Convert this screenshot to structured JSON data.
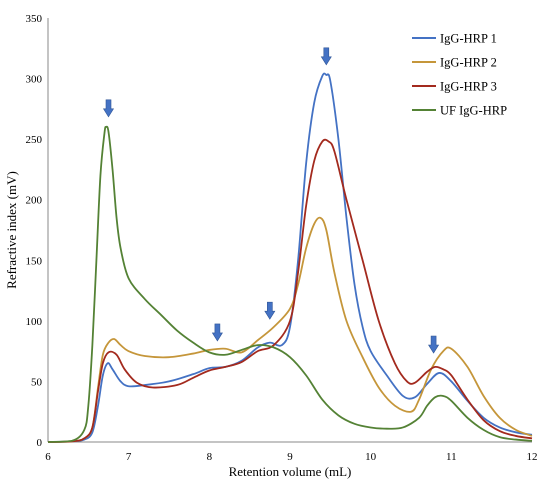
{
  "chart_data": {
    "type": "line",
    "title": "",
    "xlabel": "Retention volume (mL)",
    "ylabel": "Refractive index (mV)",
    "xlim": [
      6,
      12
    ],
    "ylim": [
      0,
      350
    ],
    "x_ticks": [
      "6",
      "7",
      "8",
      "9",
      "10",
      "11",
      "12"
    ],
    "y_ticks": [
      "0",
      "50",
      "100",
      "150",
      "200",
      "250",
      "300",
      "350"
    ],
    "grid": false,
    "legend_position": "top-right",
    "series": [
      {
        "name": "IgG-HRP 1",
        "color": "#4472C4",
        "x": [
          6.0,
          6.3,
          6.45,
          6.55,
          6.62,
          6.68,
          6.74,
          6.8,
          6.9,
          7.0,
          7.2,
          7.5,
          7.8,
          8.0,
          8.2,
          8.4,
          8.6,
          8.75,
          8.9,
          9.0,
          9.1,
          9.2,
          9.3,
          9.4,
          9.45,
          9.5,
          9.6,
          9.7,
          9.8,
          9.9,
          10.0,
          10.2,
          10.4,
          10.55,
          10.7,
          10.85,
          11.0,
          11.2,
          11.4,
          11.6,
          11.8,
          12.0
        ],
        "y": [
          0,
          0.5,
          2,
          8,
          30,
          55,
          65,
          60,
          50,
          46,
          47,
          50,
          56,
          61,
          62,
          67,
          78,
          82,
          80,
          95,
          150,
          230,
          280,
          302,
          303,
          298,
          250,
          185,
          130,
          95,
          75,
          55,
          38,
          37,
          48,
          57,
          50,
          34,
          20,
          12,
          8,
          6
        ]
      },
      {
        "name": "IgG-HRP 2",
        "color": "#C5963A",
        "x": [
          6.0,
          6.3,
          6.45,
          6.55,
          6.62,
          6.68,
          6.75,
          6.82,
          6.9,
          7.0,
          7.2,
          7.5,
          7.8,
          8.0,
          8.2,
          8.4,
          8.6,
          8.8,
          9.0,
          9.1,
          9.2,
          9.3,
          9.38,
          9.45,
          9.55,
          9.7,
          9.9,
          10.1,
          10.3,
          10.5,
          10.6,
          10.75,
          10.9,
          11.0,
          11.2,
          11.4,
          11.6,
          11.8,
          12.0
        ],
        "y": [
          0,
          0.5,
          3,
          12,
          45,
          72,
          82,
          85,
          80,
          75,
          71,
          70,
          73,
          76,
          77,
          74,
          84,
          95,
          110,
          130,
          160,
          180,
          185,
          175,
          140,
          100,
          70,
          45,
          30,
          25,
          35,
          60,
          75,
          77,
          62,
          38,
          20,
          10,
          5
        ]
      },
      {
        "name": "IgG-HRP 3",
        "color": "#A32A1E",
        "x": [
          6.0,
          6.3,
          6.45,
          6.55,
          6.62,
          6.68,
          6.75,
          6.85,
          6.95,
          7.1,
          7.3,
          7.6,
          7.8,
          8.0,
          8.2,
          8.4,
          8.6,
          8.8,
          9.0,
          9.1,
          9.2,
          9.3,
          9.4,
          9.48,
          9.55,
          9.7,
          9.9,
          10.1,
          10.3,
          10.45,
          10.55,
          10.7,
          10.8,
          10.9,
          11.0,
          11.2,
          11.4,
          11.6,
          11.8,
          12.0
        ],
        "y": [
          0,
          0.5,
          3,
          12,
          42,
          65,
          74,
          72,
          60,
          49,
          45,
          47,
          53,
          59,
          62,
          66,
          75,
          80,
          100,
          140,
          195,
          232,
          248,
          248,
          240,
          200,
          150,
          100,
          65,
          50,
          49,
          58,
          62,
          60,
          55,
          35,
          18,
          9,
          5,
          3
        ]
      },
      {
        "name": "UF IgG-HRP",
        "color": "#548235",
        "x": [
          6.0,
          6.3,
          6.45,
          6.5,
          6.55,
          6.6,
          6.65,
          6.7,
          6.72,
          6.75,
          6.8,
          6.85,
          6.9,
          7.0,
          7.2,
          7.4,
          7.6,
          7.8,
          8.0,
          8.2,
          8.4,
          8.6,
          8.8,
          9.0,
          9.2,
          9.4,
          9.6,
          9.8,
          10.0,
          10.2,
          10.4,
          10.6,
          10.7,
          10.8,
          10.9,
          11.0,
          11.2,
          11.4,
          11.6,
          11.8,
          12.0
        ],
        "y": [
          0,
          1,
          10,
          30,
          80,
          150,
          220,
          255,
          260,
          256,
          225,
          185,
          160,
          135,
          118,
          105,
          92,
          82,
          74,
          72,
          76,
          80,
          78,
          70,
          55,
          35,
          22,
          15,
          12,
          11,
          12,
          20,
          30,
          37,
          38,
          34,
          20,
          10,
          4,
          2,
          1
        ]
      }
    ],
    "markers": [
      {
        "name": "peak-arrow",
        "x": 6.75,
        "y": 275
      },
      {
        "name": "peak-arrow",
        "x": 8.1,
        "y": 90
      },
      {
        "name": "peak-arrow",
        "x": 8.75,
        "y": 108
      },
      {
        "name": "peak-arrow",
        "x": 9.45,
        "y": 318
      },
      {
        "name": "peak-arrow",
        "x": 10.78,
        "y": 80
      }
    ],
    "marker_color": "#4472C4"
  }
}
